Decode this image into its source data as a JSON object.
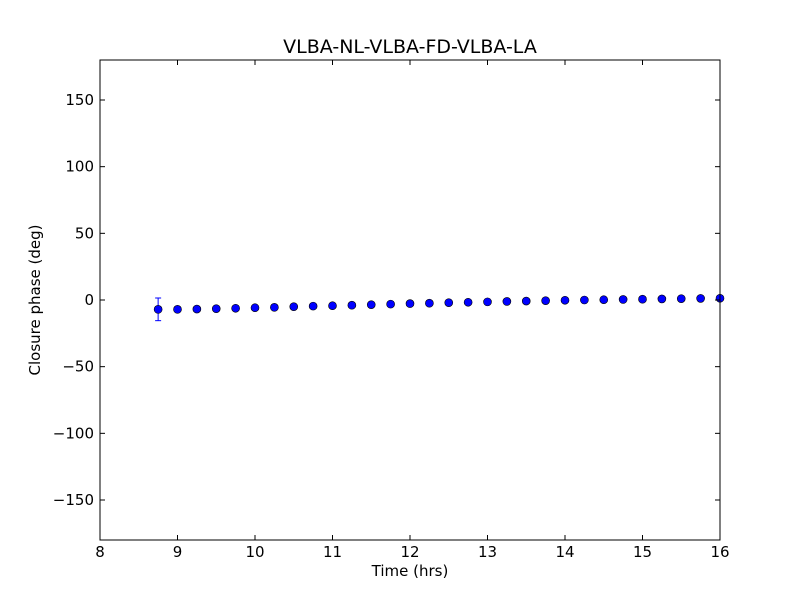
{
  "chart_data": {
    "type": "scatter",
    "title": "VLBA-NL-VLBA-FD-VLBA-LA",
    "xlabel": "Time (hrs)",
    "ylabel": "Closure phase (deg)",
    "xlim": [
      8,
      16
    ],
    "ylim": [
      -180,
      180
    ],
    "xticks": [
      8,
      9,
      10,
      11,
      12,
      13,
      14,
      15,
      16
    ],
    "xtick_labels": [
      "8",
      "9",
      "10",
      "11",
      "12",
      "13",
      "14",
      "15",
      "16"
    ],
    "yticks": [
      -150,
      -100,
      -50,
      0,
      50,
      100,
      150
    ],
    "ytick_labels": [
      "−150",
      "−100",
      "−50",
      "0",
      "50",
      "100",
      "150"
    ],
    "grid": false,
    "marker_color": "#0000ff",
    "errorbar_color": "#0000ff",
    "points": [
      {
        "x": 8.75,
        "y": -7.0,
        "err": 8.5
      },
      {
        "x": 9.0,
        "y": -7.0,
        "err": 1.5
      },
      {
        "x": 9.25,
        "y": -6.8,
        "err": 1.5
      },
      {
        "x": 9.5,
        "y": -6.5,
        "err": 1.5
      },
      {
        "x": 9.75,
        "y": -6.2,
        "err": 1.5
      },
      {
        "x": 10.0,
        "y": -5.8,
        "err": 1.5
      },
      {
        "x": 10.25,
        "y": -5.5,
        "err": 1.5
      },
      {
        "x": 10.5,
        "y": -5.0,
        "err": 1.5
      },
      {
        "x": 10.75,
        "y": -4.6,
        "err": 1.5
      },
      {
        "x": 11.0,
        "y": -4.3,
        "err": 1.5
      },
      {
        "x": 11.25,
        "y": -3.9,
        "err": 1.5
      },
      {
        "x": 11.5,
        "y": -3.5,
        "err": 1.5
      },
      {
        "x": 11.75,
        "y": -3.1,
        "err": 1.5
      },
      {
        "x": 12.0,
        "y": -2.7,
        "err": 1.5
      },
      {
        "x": 12.25,
        "y": -2.4,
        "err": 1.5
      },
      {
        "x": 12.5,
        "y": -2.0,
        "err": 1.5
      },
      {
        "x": 12.75,
        "y": -1.7,
        "err": 1.5
      },
      {
        "x": 13.0,
        "y": -1.4,
        "err": 1.5
      },
      {
        "x": 13.25,
        "y": -1.1,
        "err": 1.5
      },
      {
        "x": 13.5,
        "y": -0.8,
        "err": 1.5
      },
      {
        "x": 13.75,
        "y": -0.5,
        "err": 1.5
      },
      {
        "x": 14.0,
        "y": -0.2,
        "err": 1.5
      },
      {
        "x": 14.25,
        "y": 0.0,
        "err": 1.5
      },
      {
        "x": 14.5,
        "y": 0.2,
        "err": 1.5
      },
      {
        "x": 14.75,
        "y": 0.4,
        "err": 1.5
      },
      {
        "x": 15.0,
        "y": 0.6,
        "err": 1.5
      },
      {
        "x": 15.25,
        "y": 0.8,
        "err": 1.5
      },
      {
        "x": 15.5,
        "y": 1.0,
        "err": 1.5
      },
      {
        "x": 15.75,
        "y": 1.2,
        "err": 1.5
      },
      {
        "x": 16.0,
        "y": 1.3,
        "err": 1.5
      }
    ]
  }
}
